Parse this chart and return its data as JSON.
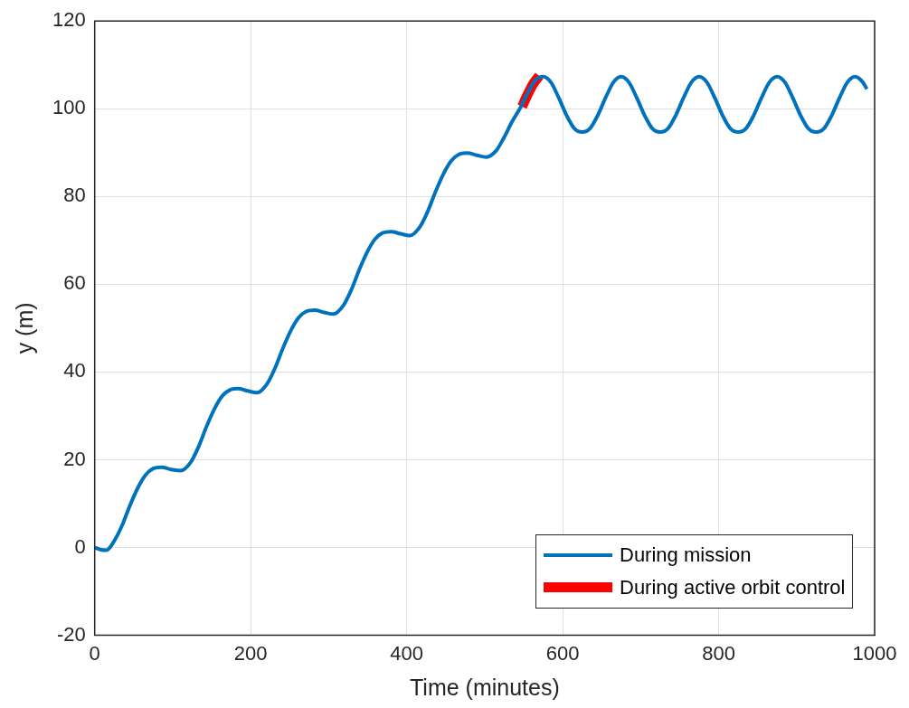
{
  "chart_data": {
    "type": "line",
    "xlabel": "Time (minutes)",
    "ylabel": "y (m)",
    "xlim": [
      0,
      1000
    ],
    "xticks": [
      0,
      200,
      400,
      600,
      800,
      1000
    ],
    "ylim": [
      -20,
      120
    ],
    "yticks": [
      -20,
      0,
      20,
      40,
      60,
      80,
      100,
      120
    ],
    "grid": true,
    "legend": "bottom right",
    "marker": "none",
    "line_style": "solid",
    "series": [
      {
        "name": "During mission",
        "color": "#0072bd",
        "x": [
          0,
          8,
          15,
          25,
          35,
          45,
          55,
          65,
          75,
          86,
          98,
          110,
          123,
          133,
          143,
          153,
          163,
          173,
          184,
          196,
          208,
          221,
          231,
          241,
          251,
          261,
          271,
          282,
          294,
          306,
          319,
          329,
          339,
          349,
          359,
          369,
          380,
          392,
          404,
          417,
          427,
          437,
          447,
          457,
          467,
          478,
          490,
          502,
          515,
          525,
          535,
          545,
          555,
          565,
          575,
          585,
          595,
          605,
          615,
          625,
          635,
          645,
          655,
          665,
          675,
          685,
          695,
          705,
          715,
          725,
          735,
          745,
          755,
          765,
          775,
          785,
          795,
          805,
          815,
          825,
          835,
          845,
          855,
          865,
          875,
          885,
          895,
          905,
          915,
          925,
          935,
          945,
          955,
          965,
          975,
          985,
          990
        ],
        "values": [
          0,
          -0.5,
          -0.6,
          1.5,
          5,
          9.5,
          13.5,
          16.5,
          18,
          18.3,
          17.8,
          17.5,
          19.4,
          22.9,
          27.4,
          31.4,
          34.4,
          35.9,
          36.2,
          35.7,
          35.3,
          37.3,
          40.8,
          45.3,
          49.3,
          52.3,
          53.8,
          54.1,
          53.6,
          53.2,
          55.2,
          58.7,
          63.2,
          67.2,
          70.2,
          71.7,
          72,
          71.5,
          71.1,
          73.1,
          76.6,
          81.1,
          85.1,
          88.1,
          89.6,
          89.9,
          89.4,
          89,
          90.5,
          93.5,
          97,
          100,
          103.5,
          106.5,
          107.3,
          106,
          102.5,
          98.5,
          95.5,
          94.7,
          95.5,
          98.5,
          102.5,
          106,
          107.3,
          106,
          102.5,
          98.5,
          95.5,
          94.7,
          95.5,
          98.5,
          102.5,
          106,
          107.3,
          106,
          102.5,
          98.5,
          95.5,
          94.7,
          95.5,
          98.5,
          102.5,
          106,
          107.3,
          106,
          102.5,
          98.5,
          95.5,
          94.7,
          95.5,
          98.5,
          102.5,
          106,
          107.3,
          106,
          104.5
        ]
      },
      {
        "name": "During active orbit control",
        "color": "#ff0000",
        "x": [
          548,
          555,
          562,
          570
        ],
        "values": [
          100.5,
          103.2,
          105.6,
          107.5
        ]
      }
    ]
  }
}
